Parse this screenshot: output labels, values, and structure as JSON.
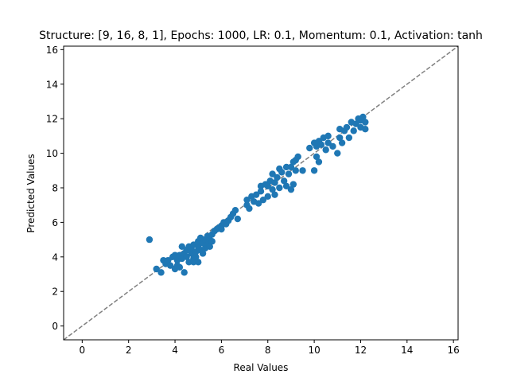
{
  "chart_data": {
    "type": "scatter",
    "title": "Structure: [9, 16, 8, 1], Epochs: 1000, LR: 0.1, Momentum: 0.1, Activation: tanh",
    "xlabel": "Real Values",
    "ylabel": "Predicted Values",
    "xlim": [
      -0.8,
      16.2
    ],
    "ylim": [
      -0.8,
      16.2
    ],
    "xticks": [
      0,
      2,
      4,
      6,
      8,
      10,
      12,
      14,
      16
    ],
    "yticks": [
      0,
      2,
      4,
      6,
      8,
      10,
      12,
      14,
      16
    ],
    "grid": false,
    "reference_line": {
      "style": "dashed",
      "color": "#808080",
      "from": [
        -0.8,
        -0.8
      ],
      "to": [
        16.2,
        16.2
      ]
    },
    "marker_color": "#1f77b4",
    "series": [
      {
        "points": [
          [
            2.9,
            5.0
          ],
          [
            3.2,
            3.3
          ],
          [
            3.4,
            3.1
          ],
          [
            3.5,
            3.8
          ],
          [
            3.6,
            3.6
          ],
          [
            3.7,
            3.8
          ],
          [
            3.8,
            3.5
          ],
          [
            3.9,
            4.0
          ],
          [
            4.0,
            4.1
          ],
          [
            4.0,
            3.3
          ],
          [
            4.1,
            3.8
          ],
          [
            4.1,
            3.5
          ],
          [
            4.2,
            4.1
          ],
          [
            4.2,
            3.4
          ],
          [
            4.3,
            4.6
          ],
          [
            4.3,
            3.9
          ],
          [
            4.4,
            3.1
          ],
          [
            4.4,
            4.2
          ],
          [
            4.5,
            4.0
          ],
          [
            4.5,
            4.4
          ],
          [
            4.6,
            4.6
          ],
          [
            4.6,
            3.7
          ],
          [
            4.7,
            4.2
          ],
          [
            4.7,
            4.5
          ],
          [
            4.8,
            3.9
          ],
          [
            4.8,
            4.7
          ],
          [
            4.8,
            3.7
          ],
          [
            4.9,
            4.3
          ],
          [
            4.9,
            4.0
          ],
          [
            5.0,
            4.6
          ],
          [
            5.0,
            4.9
          ],
          [
            5.0,
            3.7
          ],
          [
            5.1,
            4.4
          ],
          [
            5.1,
            5.1
          ],
          [
            5.2,
            4.2
          ],
          [
            5.2,
            4.8
          ],
          [
            5.3,
            4.5
          ],
          [
            5.3,
            5.0
          ],
          [
            5.4,
            4.7
          ],
          [
            5.4,
            5.2
          ],
          [
            5.5,
            4.6
          ],
          [
            5.5,
            5.0
          ],
          [
            5.6,
            4.9
          ],
          [
            5.6,
            5.3
          ],
          [
            5.7,
            5.5
          ],
          [
            5.8,
            5.6
          ],
          [
            5.9,
            5.7
          ],
          [
            6.0,
            5.8
          ],
          [
            6.0,
            5.6
          ],
          [
            6.1,
            6.0
          ],
          [
            6.2,
            5.9
          ],
          [
            6.3,
            6.1
          ],
          [
            6.4,
            6.3
          ],
          [
            6.5,
            6.5
          ],
          [
            6.6,
            6.7
          ],
          [
            6.7,
            6.2
          ],
          [
            7.1,
            7.0
          ],
          [
            7.1,
            7.3
          ],
          [
            7.2,
            6.8
          ],
          [
            7.3,
            7.5
          ],
          [
            7.4,
            7.2
          ],
          [
            7.5,
            7.6
          ],
          [
            7.6,
            7.1
          ],
          [
            7.7,
            7.8
          ],
          [
            7.7,
            8.1
          ],
          [
            7.8,
            7.3
          ],
          [
            7.9,
            8.2
          ],
          [
            8.0,
            7.5
          ],
          [
            8.0,
            8.1
          ],
          [
            8.1,
            8.4
          ],
          [
            8.2,
            7.9
          ],
          [
            8.2,
            8.8
          ],
          [
            8.3,
            8.3
          ],
          [
            8.3,
            7.6
          ],
          [
            8.4,
            8.6
          ],
          [
            8.5,
            9.1
          ],
          [
            8.5,
            8.0
          ],
          [
            8.6,
            8.9
          ],
          [
            8.7,
            8.4
          ],
          [
            8.8,
            9.2
          ],
          [
            8.8,
            8.1
          ],
          [
            8.9,
            8.8
          ],
          [
            9.0,
            9.2
          ],
          [
            9.0,
            7.9
          ],
          [
            9.1,
            9.5
          ],
          [
            9.1,
            8.2
          ],
          [
            9.2,
            9.6
          ],
          [
            9.2,
            9.0
          ],
          [
            9.3,
            9.8
          ],
          [
            9.5,
            9.0
          ],
          [
            9.8,
            10.3
          ],
          [
            10.0,
            10.6
          ],
          [
            10.0,
            9.0
          ],
          [
            10.1,
            10.4
          ],
          [
            10.1,
            9.8
          ],
          [
            10.2,
            9.5
          ],
          [
            10.2,
            10.7
          ],
          [
            10.3,
            10.5
          ],
          [
            10.4,
            10.9
          ],
          [
            10.5,
            10.2
          ],
          [
            10.6,
            11.0
          ],
          [
            10.6,
            10.6
          ],
          [
            10.8,
            10.4
          ],
          [
            11.0,
            10.0
          ],
          [
            11.1,
            11.4
          ],
          [
            11.1,
            10.9
          ],
          [
            11.2,
            10.6
          ],
          [
            11.3,
            11.3
          ],
          [
            11.4,
            11.5
          ],
          [
            11.5,
            10.9
          ],
          [
            11.6,
            11.8
          ],
          [
            11.7,
            11.3
          ],
          [
            11.8,
            11.7
          ],
          [
            11.9,
            12.0
          ],
          [
            12.0,
            11.5
          ],
          [
            12.0,
            11.9
          ],
          [
            12.1,
            12.1
          ],
          [
            12.2,
            11.4
          ],
          [
            12.2,
            11.8
          ]
        ]
      }
    ]
  }
}
